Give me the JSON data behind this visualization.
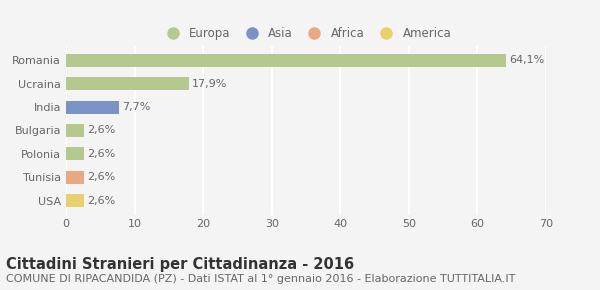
{
  "categories": [
    "Romania",
    "Ucraina",
    "India",
    "Bulgaria",
    "Polonia",
    "Tunisia",
    "USA"
  ],
  "values": [
    64.1,
    17.9,
    7.7,
    2.6,
    2.6,
    2.6,
    2.6
  ],
  "labels": [
    "64,1%",
    "17,9%",
    "7,7%",
    "2,6%",
    "2,6%",
    "2,6%",
    "2,6%"
  ],
  "bar_colors": [
    "#b5c98e",
    "#b5c98e",
    "#7b93c4",
    "#b5c98e",
    "#b5c98e",
    "#e8a882",
    "#e8d070"
  ],
  "legend_labels": [
    "Europa",
    "Asia",
    "Africa",
    "America"
  ],
  "legend_colors": [
    "#b5c98e",
    "#7b93c4",
    "#e8a882",
    "#e8d070"
  ],
  "xlim": [
    0,
    70
  ],
  "xticks": [
    0,
    10,
    20,
    30,
    40,
    50,
    60,
    70
  ],
  "title": "Cittadini Stranieri per Cittadinanza - 2016",
  "subtitle": "COMUNE DI RIPACANDIDA (PZ) - Dati ISTAT al 1° gennaio 2016 - Elaborazione TUTTITALIA.IT",
  "background_color": "#f4f4f4",
  "grid_color": "#ffffff",
  "bar_height": 0.55,
  "title_fontsize": 10.5,
  "subtitle_fontsize": 8,
  "label_fontsize": 8,
  "tick_fontsize": 8,
  "legend_fontsize": 8.5,
  "text_color": "#666666"
}
